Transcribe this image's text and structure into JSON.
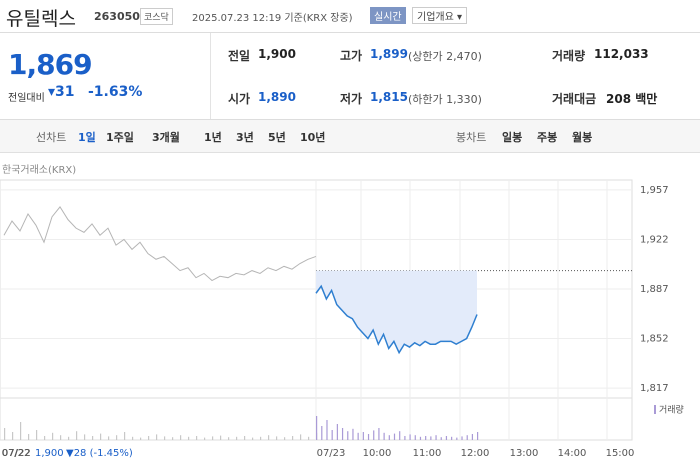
{
  "header": {
    "name": "유틸렉스",
    "code": "263050",
    "market": "코스닥",
    "timestamp": "2025.07.23 12:19 기준(KRX 장중)",
    "realtime_button": "실시간",
    "company_button": "기업개요"
  },
  "summary": {
    "price": "1,869",
    "change_label": "전일대비",
    "change": "31",
    "change_pct": "-1.63%",
    "items": [
      {
        "label": "전일",
        "value": "1,900"
      },
      {
        "label": "고가",
        "value": "1,899",
        "note": "(상한가 2,470)"
      },
      {
        "label": "거래량",
        "value": "112,033"
      },
      {
        "label": "시가",
        "value": "1,890"
      },
      {
        "label": "저가",
        "value": "1,815",
        "note": "(하한가 1,330)"
      },
      {
        "label": "거래대금",
        "value": "208 백만"
      }
    ]
  },
  "tabs": {
    "line_label": "선차트",
    "line": [
      "1일",
      "1주일",
      "3개월",
      "1년",
      "3년",
      "5년",
      "10년"
    ],
    "selected": 0,
    "candle_label": "봉차트",
    "candle": [
      "일봉",
      "주봉",
      "월봉"
    ]
  },
  "chart_data": {
    "type": "line",
    "source": "한국거래소(KRX)",
    "ylim": [
      1810,
      1964
    ],
    "yticks": [
      {
        "value": 1957,
        "label": "1,957"
      },
      {
        "value": 1922,
        "label": "1,922"
      },
      {
        "value": 1887,
        "label": "1,887"
      },
      {
        "value": 1852,
        "label": "1,852"
      },
      {
        "value": 1817,
        "label": "1,817"
      }
    ],
    "previous_close": 1900,
    "xlabels": [
      "07/22",
      "07/23",
      "10:00",
      "11:00",
      "12:00",
      "13:00",
      "14:00",
      "15:00"
    ],
    "series": [
      {
        "color": "#b5b5b5",
        "values": [
          1925,
          1935,
          1928,
          1940,
          1932,
          1920,
          1938,
          1945,
          1936,
          1930,
          1927,
          1933,
          1925,
          1930,
          1918,
          1922,
          1915,
          1920,
          1912,
          1908,
          1910,
          1905,
          1900,
          1902,
          1895,
          1898,
          1893,
          1896,
          1895,
          1898,
          1897,
          1900,
          1898,
          1902,
          1900,
          1903,
          1901,
          1905,
          1908,
          1910
        ]
      },
      {
        "color": "#2f7fd0",
        "fill": "#e3ebfa",
        "values": [
          1884,
          1889,
          1880,
          1886,
          1876,
          1872,
          1868,
          1866,
          1860,
          1856,
          1852,
          1858,
          1848,
          1855,
          1845,
          1850,
          1842,
          1848,
          1846,
          1849,
          1847,
          1850,
          1848,
          1848,
          1850,
          1850,
          1850,
          1848,
          1850,
          1852,
          1860,
          1869
        ]
      }
    ],
    "volume_label": "거래량",
    "volume_ylim": [
      0,
      100
    ],
    "volume": [
      [
        30,
        20,
        45,
        15,
        25,
        10,
        18,
        12,
        8,
        22,
        14,
        10,
        16,
        9,
        12,
        20,
        8,
        6,
        10,
        14,
        9,
        7,
        12,
        8,
        10,
        6,
        9,
        11,
        7,
        8,
        10,
        6,
        8,
        12,
        9,
        7,
        10,
        14,
        8,
        18
      ],
      [
        60,
        35,
        50,
        25,
        40,
        30,
        22,
        28,
        18,
        20,
        15,
        24,
        30,
        18,
        12,
        16,
        22,
        10,
        14,
        12,
        8,
        10,
        9,
        12,
        7,
        10,
        8,
        6,
        9,
        12,
        15,
        20
      ]
    ],
    "footer": {
      "date": "07/22",
      "price": "1,900",
      "change": "▼28 (-1.45%)"
    }
  }
}
